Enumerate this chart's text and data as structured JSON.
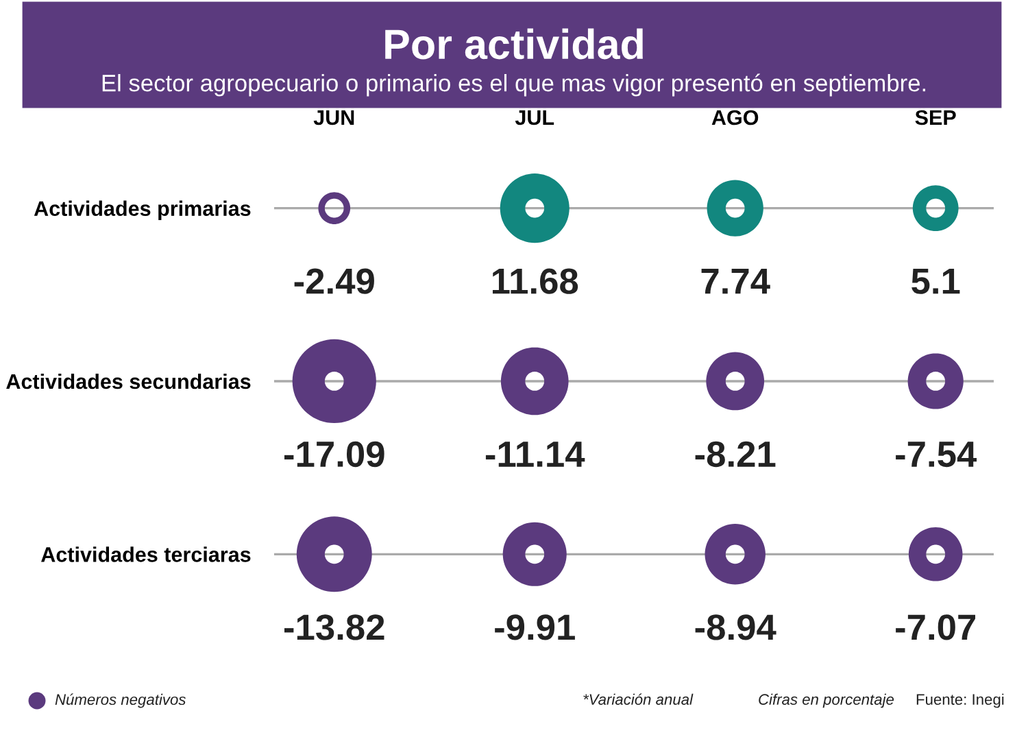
{
  "chart_data": {
    "type": "heatmap",
    "title": "Por actividad",
    "subtitle": "El sector agropecuario o primario es el que mas vigor presentó en septiembre.",
    "categories": [
      "JUN",
      "JUL",
      "AGO",
      "SEP"
    ],
    "y_categories": [
      "Actividades primarias",
      "Actividades secundarias",
      "Actividades terciaras"
    ],
    "cells": [
      [
        -2.49,
        11.68,
        7.74,
        5.1
      ],
      [
        -17.09,
        -11.14,
        -8.21,
        -7.54
      ],
      [
        -13.82,
        -9.91,
        -8.94,
        -7.07
      ]
    ],
    "colors": [
      "#5b3a7e",
      "#12877f"
    ],
    "data_labels": true,
    "grid": "y",
    "annotations": [
      "Números negativos",
      "*Variación anual",
      "Cifras en porcentaje",
      "Fuente: Inegi"
    ]
  }
}
